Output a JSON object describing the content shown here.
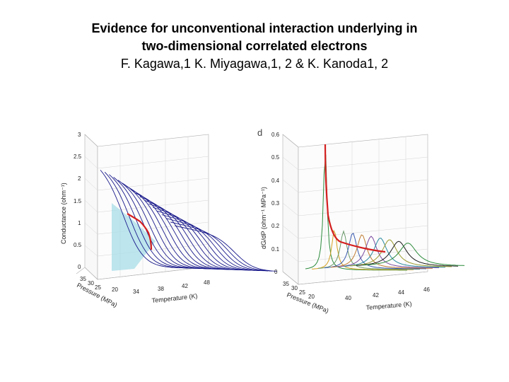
{
  "title": {
    "line1": "Evidence for unconventional  interaction underlying in",
    "line2": "two-dimensional correlated electrons",
    "authors": "F. Kagawa,1 K. Miyagawa,1, 2 & K. Kanoda1, 2"
  },
  "figures": {
    "left": {
      "z_label": "Conductance (ohm⁻¹)",
      "z_ticks": [
        "0",
        "0.5",
        "1",
        "1.5",
        "2",
        "2.5",
        "3"
      ],
      "pressure_label": "Pressure (MPa)",
      "pressure_ticks": [
        "35",
        "30",
        "25",
        "20"
      ],
      "temperature_label": "Temperature (K)",
      "temperature_ticks": [
        "34",
        "38",
        "42",
        "48"
      ]
    },
    "right": {
      "panel_letter": "d",
      "z_label": "dG/dP (ohm⁻¹ MPa⁻¹)",
      "z_ticks": [
        "0",
        "0.1",
        "0.2",
        "0.3",
        "0.4",
        "0.5",
        "0.6"
      ],
      "pressure_label": "Pressure (MPa)",
      "pressure_ticks": [
        "35",
        "30",
        "25",
        "20"
      ],
      "temperature_label": "Temperature (K)",
      "temperature_ticks": [
        "40",
        "42",
        "44",
        "46"
      ]
    }
  },
  "colors": {
    "curve_blue": "#1a1a8c",
    "critical_red": "#d42020",
    "shade": "#a8dde8",
    "curve_palette": [
      "#2a8a3a",
      "#d4a020",
      "#6a9a6a",
      "#3a5ab0",
      "#c07a30",
      "#7a4aa0",
      "#2a8aa0",
      "#9a9a30",
      "#1a1a1a"
    ]
  }
}
